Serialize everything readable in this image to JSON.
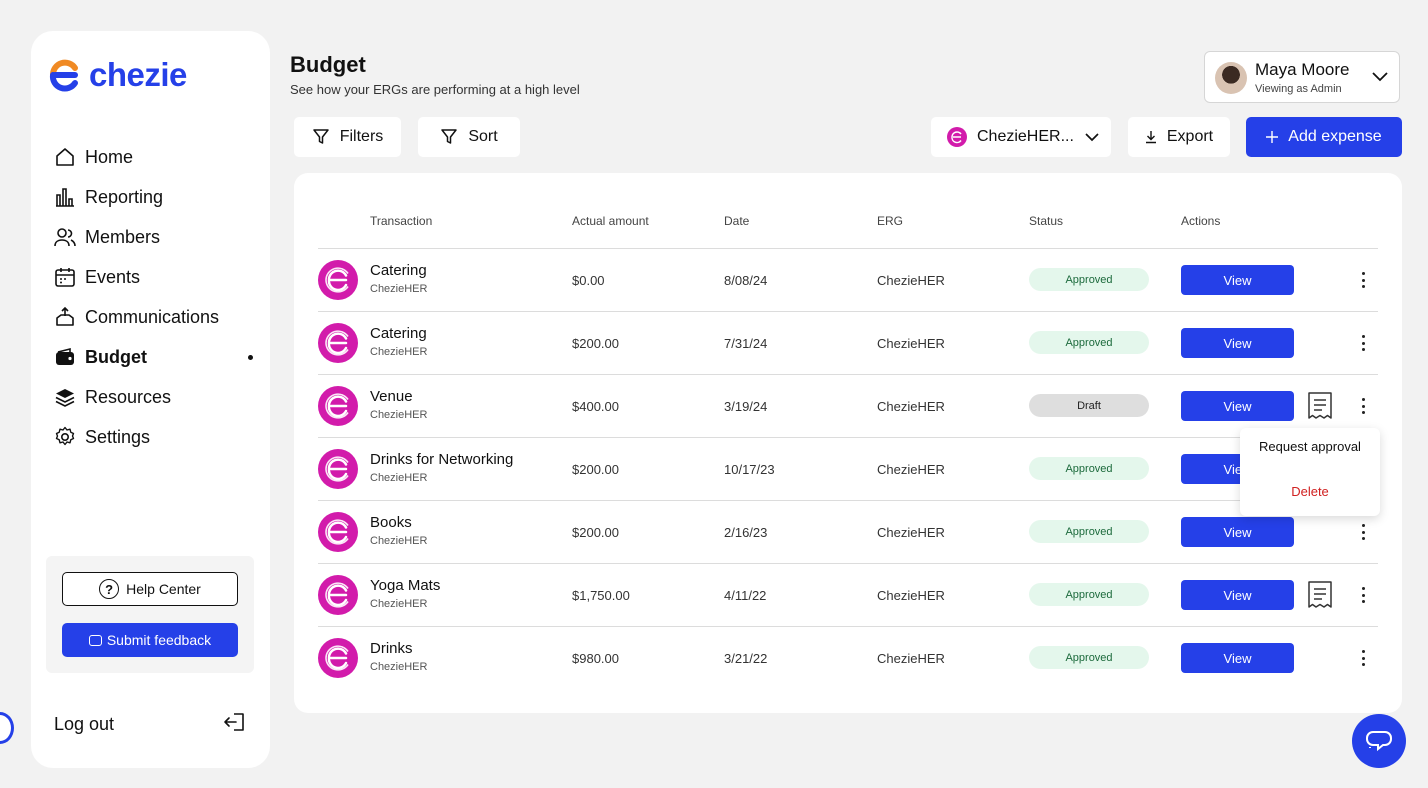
{
  "app": {
    "logo_text": "chezie"
  },
  "sidebar": {
    "items": [
      {
        "label": "Home",
        "icon": "home-icon"
      },
      {
        "label": "Reporting",
        "icon": "bar-chart-icon"
      },
      {
        "label": "Members",
        "icon": "members-icon"
      },
      {
        "label": "Events",
        "icon": "calendar-icon"
      },
      {
        "label": "Communications",
        "icon": "megaphone-icon"
      },
      {
        "label": "Budget",
        "icon": "wallet-icon",
        "active": true
      },
      {
        "label": "Resources",
        "icon": "layers-icon"
      },
      {
        "label": "Settings",
        "icon": "gear-icon"
      }
    ],
    "help_center": "Help Center",
    "submit_feedback": "Submit feedback",
    "log_out": "Log out"
  },
  "header": {
    "title": "Budget",
    "subtitle": "See how your ERGs are performing at a high level",
    "user_name": "Maya Moore",
    "user_role": "Viewing as Admin"
  },
  "toolbar": {
    "filters": "Filters",
    "sort": "Sort",
    "erg_selected": "ChezieHER...",
    "export": "Export",
    "add_expense": "Add expense"
  },
  "table": {
    "columns": [
      "Transaction",
      "Actual amount",
      "Date",
      "ERG",
      "Status",
      "Actions"
    ],
    "view_label": "View",
    "rows": [
      {
        "name": "Catering",
        "erg_sub": "ChezieHER",
        "amount": "$0.00",
        "date": "8/08/24",
        "erg": "ChezieHER",
        "status": "Approved",
        "receipt": false
      },
      {
        "name": "Catering",
        "erg_sub": "ChezieHER",
        "amount": "$200.00",
        "date": "7/31/24",
        "erg": "ChezieHER",
        "status": "Approved",
        "receipt": false
      },
      {
        "name": "Venue",
        "erg_sub": "ChezieHER",
        "amount": "$400.00",
        "date": "3/19/24",
        "erg": "ChezieHER",
        "status": "Draft",
        "receipt": true
      },
      {
        "name": "Drinks for Networking",
        "erg_sub": "ChezieHER",
        "amount": "$200.00",
        "date": "10/17/23",
        "erg": "ChezieHER",
        "status": "Approved",
        "receipt": false
      },
      {
        "name": "Books",
        "erg_sub": "ChezieHER",
        "amount": "$200.00",
        "date": "2/16/23",
        "erg": "ChezieHER",
        "status": "Approved",
        "receipt": false
      },
      {
        "name": "Yoga Mats",
        "erg_sub": "ChezieHER",
        "amount": "$1,750.00",
        "date": "4/11/22",
        "erg": "ChezieHER",
        "status": "Approved",
        "receipt": true
      },
      {
        "name": "Drinks",
        "erg_sub": "ChezieHER",
        "amount": "$980.00",
        "date": "3/21/22",
        "erg": "ChezieHER",
        "status": "Approved",
        "receipt": false
      }
    ]
  },
  "row_menu": {
    "request_approval": "Request approval",
    "delete": "Delete"
  },
  "colors": {
    "accent": "#2540e8",
    "erg_logo": "#d21bab",
    "approved_bg": "#e4f7ec",
    "draft_bg": "#dedede",
    "delete": "#d02020"
  }
}
